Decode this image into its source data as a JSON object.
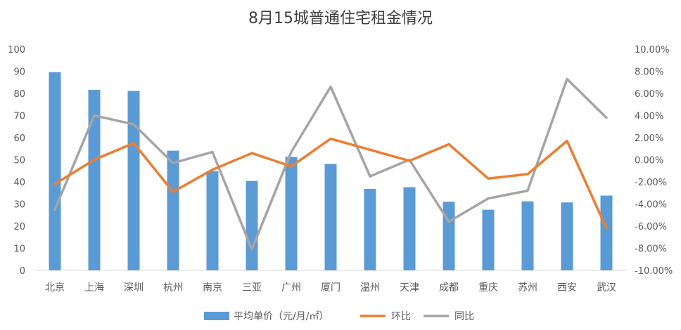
{
  "chart_data": {
    "type": "bar",
    "title": "8月15城普通住宅租金情况",
    "categories": [
      "北京",
      "上海",
      "深圳",
      "杭州",
      "南京",
      "三亚",
      "广州",
      "厦门",
      "温州",
      "天津",
      "成都",
      "重庆",
      "苏州",
      "西安",
      "武汉"
    ],
    "y_left": {
      "lim": [
        0,
        100
      ],
      "ticks": [
        "0",
        "10",
        "20",
        "30",
        "40",
        "50",
        "60",
        "70",
        "80",
        "90",
        "100"
      ]
    },
    "y_right": {
      "lim": [
        -10,
        10
      ],
      "ticks": [
        "-10.00%",
        "-8.00%",
        "-6.00%",
        "-4.00%",
        "-2.00%",
        "0.00%",
        "2.00%",
        "4.00%",
        "6.00%",
        "8.00%",
        "10.00%"
      ]
    },
    "grid": false,
    "legend_position": "bottom",
    "series": [
      {
        "name": "平均单价（元/月/㎡）",
        "type": "bar",
        "axis": "left",
        "color": "#5b9bd5",
        "values": [
          89.6,
          81.6,
          81.1,
          54.1,
          44.8,
          40.4,
          51.3,
          48.1,
          36.8,
          37.6,
          31.0,
          27.4,
          31.2,
          30.7,
          33.8
        ]
      },
      {
        "name": "环比",
        "type": "line",
        "axis": "right",
        "color": "#ed7d31",
        "values": [
          -2.2,
          0.0,
          1.5,
          -2.9,
          -0.9,
          0.6,
          -0.6,
          1.9,
          0.9,
          -0.1,
          1.4,
          -1.7,
          -1.3,
          1.7,
          -6.2
        ]
      },
      {
        "name": "同比",
        "type": "line",
        "axis": "right",
        "color": "#a5a5a5",
        "values": [
          -4.5,
          4.0,
          3.2,
          -0.3,
          0.7,
          -8.1,
          0.7,
          6.6,
          -1.5,
          0.0,
          -5.6,
          -3.5,
          -2.8,
          7.3,
          3.8
        ]
      }
    ]
  }
}
